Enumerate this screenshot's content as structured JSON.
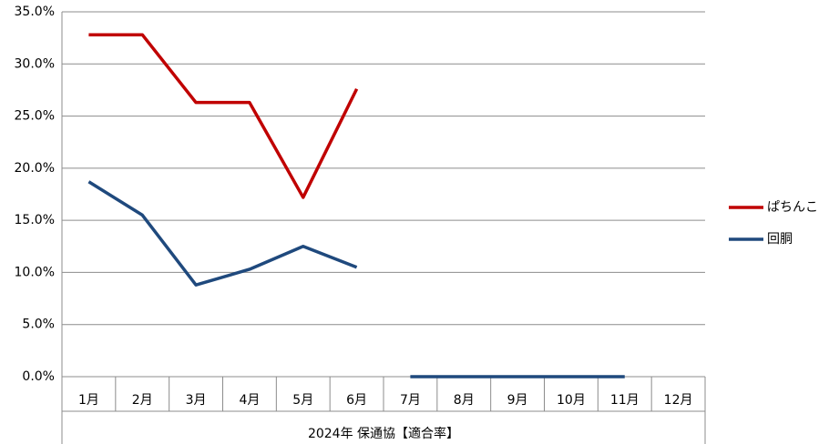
{
  "chart_data": {
    "type": "line",
    "categories": [
      "1月",
      "2月",
      "3月",
      "4月",
      "5月",
      "6月",
      "7月",
      "8月",
      "9月",
      "10月",
      "11月",
      "12月"
    ],
    "group_label": "2024年 保通協【適合率】",
    "series": [
      {
        "name": "ぱちんこ",
        "color": "#c00000",
        "values": [
          32.8,
          32.8,
          26.3,
          26.3,
          17.2,
          27.6,
          null,
          null,
          null,
          null,
          null,
          null
        ]
      },
      {
        "name": "回胴",
        "color": "#1f497d",
        "values": [
          18.7,
          15.5,
          8.8,
          10.3,
          12.5,
          10.5,
          null,
          null,
          null,
          null,
          null,
          null
        ]
      },
      {
        "color": "#1f497d",
        "values": [
          null,
          null,
          null,
          null,
          null,
          null,
          0,
          0,
          0,
          0,
          0,
          null
        ]
      }
    ],
    "ylim": [
      0,
      35
    ],
    "yticks": [
      {
        "value": 0,
        "label": "0.0%"
      },
      {
        "value": 5,
        "label": "5.0%"
      },
      {
        "value": 10,
        "label": "10.0%"
      },
      {
        "value": 15,
        "label": "15.0%"
      },
      {
        "value": 20,
        "label": "20.0%"
      },
      {
        "value": 25,
        "label": "25.0%"
      },
      {
        "value": 30,
        "label": "30.0%"
      },
      {
        "value": 35,
        "label": "35.0%"
      }
    ],
    "grid": true,
    "legend": "right"
  }
}
